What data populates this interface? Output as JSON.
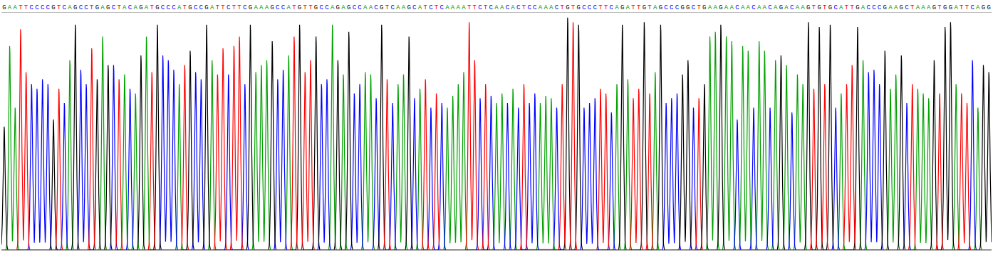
{
  "chart_data": {
    "type": "chromatogram",
    "categories": [
      "G",
      "A",
      "A",
      "T",
      "T",
      "C",
      "C",
      "C",
      "C",
      "G",
      "T",
      "C",
      "A",
      "G",
      "C",
      "C",
      "T",
      "G",
      "A",
      "G",
      "C",
      "T",
      "A",
      "C",
      "A",
      "G",
      "A",
      "T",
      "G",
      "C",
      "C",
      "C",
      "A",
      "T",
      "G",
      "C",
      "C",
      "G",
      "A",
      "T",
      "T",
      "C",
      "T",
      "T",
      "C",
      "G",
      "A",
      "A",
      "A",
      "G",
      "C",
      "C",
      "A",
      "T",
      "G",
      "T",
      "T",
      "G",
      "C",
      "C",
      "A",
      "G",
      "A",
      "G",
      "C",
      "C",
      "A",
      "A",
      "C",
      "G",
      "T",
      "C",
      "A",
      "A",
      "G",
      "C",
      "A",
      "T",
      "C",
      "T",
      "C",
      "A",
      "A",
      "A",
      "A",
      "T",
      "T",
      "C",
      "T",
      "C",
      "A",
      "A",
      "C",
      "A",
      "C",
      "T",
      "C",
      "C",
      "A",
      "A",
      "A",
      "C",
      "T",
      "G",
      "T",
      "G",
      "C",
      "C",
      "C",
      "T",
      "T",
      "C",
      "A",
      "G",
      "A",
      "T",
      "T",
      "G",
      "T",
      "A",
      "G",
      "C",
      "C",
      "C",
      "G",
      "G",
      "C",
      "T",
      "G",
      "A",
      "A",
      "G",
      "A",
      "A",
      "C",
      "A",
      "A",
      "C",
      "A",
      "A",
      "C",
      "A",
      "G",
      "A",
      "C",
      "A",
      "A",
      "G",
      "T",
      "G",
      "T",
      "G",
      "C",
      "A",
      "T",
      "T",
      "G",
      "A",
      "C",
      "C",
      "C",
      "G",
      "A",
      "A",
      "G",
      "C",
      "T",
      "A",
      "A",
      "A",
      "G",
      "T",
      "G",
      "G",
      "A",
      "T",
      "T",
      "C",
      "A",
      "G",
      "G"
    ],
    "values": [
      52,
      86,
      60,
      93,
      75,
      70,
      68,
      72,
      70,
      55,
      68,
      62,
      80,
      95,
      76,
      70,
      85,
      72,
      90,
      78,
      78,
      72,
      74,
      68,
      66,
      82,
      90,
      75,
      95,
      82,
      80,
      76,
      70,
      78,
      84,
      75,
      72,
      95,
      80,
      74,
      85,
      74,
      86,
      90,
      70,
      95,
      75,
      78,
      80,
      88,
      72,
      76,
      82,
      90,
      95,
      75,
      80,
      90,
      70,
      72,
      95,
      80,
      74,
      92,
      66,
      70,
      75,
      74,
      64,
      95,
      72,
      62,
      70,
      74,
      90,
      64,
      68,
      72,
      60,
      66,
      62,
      60,
      65,
      70,
      75,
      96,
      80,
      64,
      70,
      65,
      62,
      66,
      62,
      68,
      60,
      70,
      62,
      66,
      62,
      65,
      64,
      60,
      70,
      98,
      96,
      95,
      60,
      62,
      64,
      68,
      66,
      58,
      70,
      95,
      72,
      64,
      68,
      96,
      66,
      75,
      95,
      62,
      64,
      66,
      74,
      80,
      60,
      64,
      70,
      90,
      92,
      95,
      90,
      88,
      55,
      86,
      84,
      60,
      88,
      84,
      60,
      80,
      82,
      78,
      58,
      74,
      70,
      96,
      68,
      94,
      70,
      95,
      60,
      66,
      70,
      78,
      94,
      80,
      75,
      76,
      70,
      84,
      68,
      74,
      82,
      62,
      70,
      68,
      66,
      64,
      80,
      66,
      94,
      96,
      70,
      66,
      62,
      80,
      60,
      78,
      75
    ],
    "series": [
      {
        "name": "A",
        "color": "#00a000"
      },
      {
        "name": "C",
        "color": "#0000ff"
      },
      {
        "name": "G",
        "color": "#000000"
      },
      {
        "name": "T",
        "color": "#ff0000"
      }
    ],
    "ylim": [
      0,
      100
    ],
    "tick_labels": "x",
    "grid": false
  }
}
